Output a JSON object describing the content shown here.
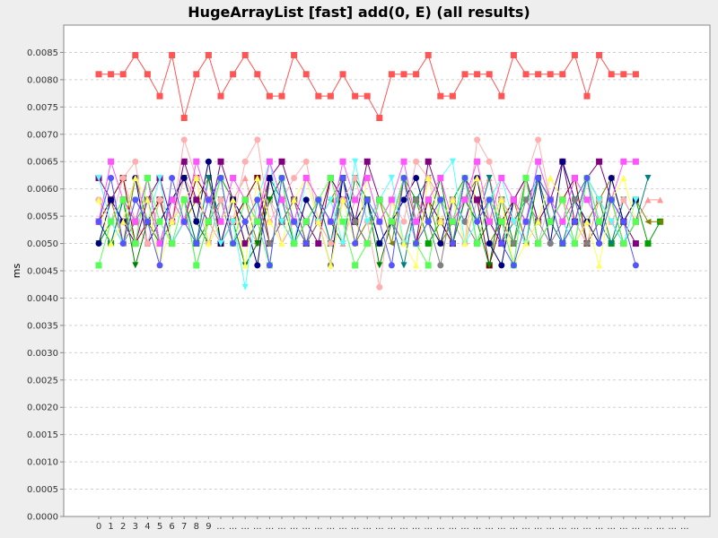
{
  "chart_data": {
    "type": "line",
    "title": "HugeArrayList [fast] add(0, E) (all results)",
    "xlabel": "",
    "ylabel": "ms",
    "ylim": [
      0,
      0.009
    ],
    "y_ticks": [
      "0.0000",
      "0.0005",
      "0.0010",
      "0.0015",
      "0.0020",
      "0.0025",
      "0.0030",
      "0.0035",
      "0.0040",
      "0.0045",
      "0.0050",
      "0.0055",
      "0.0060",
      "0.0065",
      "0.0070",
      "0.0075",
      "0.0080",
      "0.0085"
    ],
    "x_tick_labels": [
      "0",
      "1",
      "2",
      "3",
      "4",
      "5",
      "6",
      "7",
      "8",
      "9",
      "...",
      "...",
      "...",
      "...",
      "...",
      "...",
      "...",
      "...",
      "...",
      "...",
      "...",
      "...",
      "...",
      "...",
      "...",
      "...",
      "...",
      "...",
      "...",
      "...",
      "...",
      "...",
      "...",
      "...",
      "...",
      "...",
      "...",
      "...",
      "...",
      "...",
      "...",
      "...",
      "...",
      "...",
      "...",
      "...",
      "...",
      "...",
      "..."
    ],
    "grid": true,
    "legend": "none",
    "series": [
      {
        "color": "#ff5555",
        "marker": "square",
        "values": [
          0.0081,
          0.0081,
          0.0081,
          0.00845,
          0.0081,
          0.0077,
          0.00845,
          0.0073,
          0.0081,
          0.00845,
          0.0077,
          0.0081,
          0.00845,
          0.0081,
          0.0077,
          0.0077,
          0.00845,
          0.0081,
          0.0077,
          0.0077,
          0.0081,
          0.0077,
          0.0077,
          0.0073,
          0.0081,
          0.0081,
          0.0081,
          0.00845,
          0.0077,
          0.0077,
          0.0081,
          0.0081,
          0.0081,
          0.0077,
          0.00845,
          0.0081,
          0.0081,
          0.0081,
          0.0081,
          0.00845,
          0.0077,
          0.00845,
          0.0081,
          0.0081,
          0.0081
        ]
      },
      {
        "color": "#5555ff",
        "marker": "circle",
        "values": [
          0.0054,
          0.0062,
          0.005,
          0.0058,
          0.0054,
          0.0046,
          0.0062,
          0.0054,
          0.005,
          0.0058,
          0.0062,
          0.005,
          0.0054,
          0.0058,
          0.0046,
          0.0062,
          0.0054,
          0.005,
          0.0058,
          0.0054,
          0.0062,
          0.005,
          0.0058,
          0.0054,
          0.0046,
          0.0062,
          0.005,
          0.0054,
          0.0058,
          0.005,
          0.0062,
          0.0054,
          0.0058,
          0.005,
          0.0046,
          0.0054,
          0.0062,
          0.0058,
          0.005,
          0.0054,
          0.0062,
          0.005,
          0.0058,
          0.0054,
          0.0046
        ]
      },
      {
        "color": "#55ff55",
        "marker": "square",
        "values": [
          0.0046,
          0.0054,
          0.0058,
          0.005,
          0.0062,
          0.0054,
          0.005,
          0.0058,
          0.0046,
          0.0054,
          0.0062,
          0.005,
          0.0058,
          0.0054,
          0.0046,
          0.0062,
          0.005,
          0.0054,
          0.0058,
          0.0062,
          0.0054,
          0.0046,
          0.005,
          0.0058,
          0.0054,
          0.0062,
          0.005,
          0.0046,
          0.0058,
          0.0054,
          0.0062,
          0.005,
          0.0058,
          0.0054,
          0.0046,
          0.0062,
          0.005,
          0.0054,
          0.0058,
          0.005,
          0.0062,
          0.0054,
          0.0058,
          0.005,
          0.0054
        ]
      },
      {
        "color": "#ff55ff",
        "marker": "square",
        "values": [
          0.0054,
          0.0065,
          0.0058,
          0.0054,
          0.0062,
          0.005,
          0.0058,
          0.0054,
          0.0065,
          0.0058,
          0.0054,
          0.0062,
          0.0058,
          0.0054,
          0.0065,
          0.0058,
          0.0054,
          0.0062,
          0.0058,
          0.0054,
          0.0065,
          0.0058,
          0.0062,
          0.0054,
          0.0058,
          0.0065,
          0.0054,
          0.0058,
          0.0062,
          0.0054,
          0.0058,
          0.0065,
          0.0054,
          0.0062,
          0.0058,
          0.0054,
          0.0065,
          0.0058,
          0.0054,
          0.0062,
          0.0058,
          0.0054,
          0.0058,
          0.0065,
          0.0065
        ]
      },
      {
        "color": "#ffff55",
        "marker": "triangle-up",
        "values": [
          0.0058,
          0.005,
          0.0054,
          0.0062,
          0.0058,
          0.0046,
          0.0054,
          0.0058,
          0.0062,
          0.005,
          0.0054,
          0.0058,
          0.0046,
          0.0062,
          0.0054,
          0.005,
          0.0058,
          0.0062,
          0.0054,
          0.0046,
          0.0058,
          0.005,
          0.0062,
          0.0054,
          0.0058,
          0.005,
          0.0046,
          0.0062,
          0.0054,
          0.0058,
          0.005,
          0.0062,
          0.0054,
          0.0058,
          0.0046,
          0.005,
          0.0054,
          0.0062,
          0.0058,
          0.005,
          0.0054,
          0.0046,
          0.0058,
          0.0062,
          0.0054
        ]
      },
      {
        "color": "#55ffff",
        "marker": "triangle-down",
        "values": [
          0.0062,
          0.0054,
          0.005,
          0.0058,
          0.0054,
          0.0062,
          0.005,
          0.0054,
          0.0065,
          0.0058,
          0.005,
          0.0054,
          0.0042,
          0.0058,
          0.0065,
          0.0054,
          0.005,
          0.0062,
          0.0054,
          0.0058,
          0.005,
          0.0065,
          0.0054,
          0.0058,
          0.0062,
          0.005,
          0.0054,
          0.0058,
          0.0062,
          0.0065,
          0.005,
          0.0054,
          0.0058,
          0.0062,
          0.0054,
          0.005,
          0.0065,
          0.0058,
          0.0054,
          0.005,
          0.0062,
          0.0058,
          0.0054,
          0.005,
          0.0058
        ]
      },
      {
        "color": "#ffafaf",
        "marker": "circle",
        "values": [
          0.0058,
          0.0054,
          0.0062,
          0.0065,
          0.005,
          0.0058,
          0.0054,
          0.0069,
          0.0062,
          0.005,
          0.0058,
          0.0054,
          0.0065,
          0.0069,
          0.0054,
          0.0058,
          0.0062,
          0.0065,
          0.0054,
          0.005,
          0.0058,
          0.0062,
          0.0054,
          0.0042,
          0.0058,
          0.0054,
          0.0065,
          0.0062,
          0.0054,
          0.0058,
          0.005,
          0.0069,
          0.0065,
          0.0058,
          0.0054,
          0.0062,
          0.0069,
          0.0058,
          0.0054,
          0.005,
          0.0062,
          0.0058,
          0.0054,
          0.0058,
          0.0054
        ]
      },
      {
        "color": "#808080",
        "marker": "circle",
        "values": [
          0.0058,
          0.0054,
          0.005,
          0.0054,
          0.0058,
          0.005,
          0.0054,
          0.0058,
          0.0046,
          0.0054,
          0.0058,
          0.005,
          0.0054,
          0.0058,
          0.005,
          0.0054,
          0.0058,
          0.005,
          0.0054,
          0.0046,
          0.0058,
          0.0054,
          0.005,
          0.0058,
          0.0054,
          0.005,
          0.0058,
          0.0054,
          0.0046,
          0.0058,
          0.0054,
          0.005,
          0.0058,
          0.0054,
          0.005,
          0.0058,
          0.0054,
          0.005,
          0.0054,
          0.0058,
          0.005,
          0.0054,
          0.0058,
          0.005,
          0.0054
        ]
      },
      {
        "color": "#000080",
        "marker": "circle",
        "values": [
          0.005,
          0.0058,
          0.0054,
          0.0062,
          0.005,
          0.0054,
          0.0058,
          0.0062,
          0.0054,
          0.0065,
          0.005,
          0.0058,
          0.0054,
          0.0046,
          0.0062,
          0.0054,
          0.005,
          0.0058,
          0.0054,
          0.0046,
          0.0062,
          0.0054,
          0.0058,
          0.005,
          0.0054,
          0.0058,
          0.0062,
          0.0054,
          0.005,
          0.0058,
          0.0054,
          0.0062,
          0.005,
          0.0046,
          0.0058,
          0.0054,
          0.0062,
          0.005,
          0.0065,
          0.0058,
          0.0054,
          0.005,
          0.0062,
          0.0054,
          0.0058
        ]
      },
      {
        "color": "#800080",
        "marker": "square",
        "values": [
          0.0062,
          0.0058,
          0.0054,
          0.005,
          0.0058,
          0.0062,
          0.0054,
          0.0065,
          0.0058,
          0.0054,
          0.0065,
          0.0058,
          0.005,
          0.0054,
          0.0062,
          0.0065,
          0.0058,
          0.0054,
          0.005,
          0.0062,
          0.0058,
          0.0054,
          0.0065,
          0.0058,
          0.0054,
          0.0062,
          0.005,
          0.0065,
          0.0058,
          0.0054,
          0.0062,
          0.0058,
          0.0054,
          0.005,
          0.0058,
          0.0062,
          0.0054,
          0.0058,
          0.0065,
          0.0054,
          0.0062,
          0.0065,
          0.0058,
          0.0054,
          0.005
        ]
      },
      {
        "color": "#008000",
        "marker": "triangle-down",
        "values": [
          0.005,
          0.0054,
          0.0058,
          0.0046,
          0.0054,
          0.005,
          0.0058,
          0.0062,
          0.0054,
          0.005,
          0.0058,
          0.0054,
          0.0046,
          0.005,
          0.0058,
          0.0062,
          0.0054,
          0.005,
          0.0058,
          0.0054,
          0.005,
          0.0062,
          0.0058,
          0.0046,
          0.0054,
          0.005,
          0.0058,
          0.0054,
          0.0062,
          0.005,
          0.0058,
          0.0054,
          0.0046,
          0.0058,
          0.0054,
          0.005,
          0.0062,
          0.0058,
          0.0054,
          0.005,
          0.0062,
          0.0058,
          0.0054,
          0.005,
          0.0054
        ]
      },
      {
        "color": "#800000",
        "marker": "square",
        "values": [
          0.0054,
          0.0058,
          0.0062,
          0.005,
          0.0054,
          0.0058,
          0.005,
          0.0054,
          0.0062,
          0.0058,
          0.005,
          0.0054,
          0.0058,
          0.0062,
          0.005,
          0.0054,
          0.0058,
          0.005,
          0.0054,
          0.0062,
          0.0058,
          0.0054,
          0.005,
          0.0058,
          0.0054,
          0.0062,
          0.005,
          0.0058,
          0.0054,
          0.005,
          0.0062,
          0.0058,
          0.0046,
          0.0054,
          0.0058,
          0.0062,
          0.005,
          0.0054,
          0.0058,
          0.0062,
          0.005,
          0.0054,
          0.0058,
          0.005,
          0.0054
        ]
      },
      {
        "color": "#008080",
        "marker": "triangle-down",
        "values": [
          0.0054,
          0.005,
          0.0058,
          0.0054,
          0.0062,
          0.005,
          0.0054,
          0.0058,
          0.005,
          0.0062,
          0.0054,
          0.0058,
          0.005,
          0.0054,
          0.0062,
          0.0058,
          0.005,
          0.0054,
          0.0058,
          0.005,
          0.0062,
          0.0054,
          0.0058,
          0.005,
          0.0054,
          0.0046,
          0.0058,
          0.0062,
          0.0054,
          0.005,
          0.0058,
          0.0054,
          0.0062,
          0.005,
          0.0054,
          0.0058,
          0.0062,
          0.0054,
          0.005,
          0.0058,
          0.0062,
          0.0054,
          0.005,
          0.0058,
          0.0054,
          0.0062
        ]
      },
      {
        "color": "#808000",
        "marker": "triangle-left",
        "values": [
          0.0054,
          0.0058,
          0.005,
          0.0062,
          0.0054,
          0.0058,
          0.005,
          0.0054,
          0.0058,
          0.0062,
          0.005,
          0.0054,
          0.0058,
          0.005,
          0.0062,
          0.0054,
          0.0058,
          0.005,
          0.0054,
          0.0058,
          0.0062,
          0.005,
          0.0054,
          0.0058,
          0.005,
          0.0062,
          0.0054,
          0.0058,
          0.005,
          0.0054,
          0.0058,
          0.0062,
          0.005,
          0.0054,
          0.0058,
          0.005,
          0.0062,
          0.0054,
          0.0058,
          0.005,
          0.0054,
          0.0058,
          0.0062,
          0.0054,
          0.0058,
          0.0054,
          0.0054
        ]
      },
      {
        "color": "#c0c0c0",
        "marker": "circle",
        "values": [
          0.0058,
          0.0054,
          0.005,
          0.0058,
          0.0054,
          0.0058,
          0.005,
          0.0054,
          0.0058,
          0.005,
          0.0054,
          0.0058,
          0.0054,
          0.005,
          0.0058,
          0.0054,
          0.005,
          0.0058,
          0.0054,
          0.005,
          0.0058,
          0.0054,
          0.0058,
          0.005,
          0.0054,
          0.0058,
          0.005,
          0.0054,
          0.0058,
          0.0054,
          0.005,
          0.0058,
          0.0054,
          0.005,
          0.0058,
          0.0054,
          0.005,
          0.0058,
          0.0054,
          0.0058,
          0.005,
          0.0054,
          0.0058,
          0.005,
          0.0054
        ]
      },
      {
        "color": "#ff9999",
        "marker": "triangle-up",
        "values": [
          0.0054,
          0.0058,
          0.0062,
          0.0054,
          0.005,
          0.0058,
          0.0054,
          0.0062,
          0.0058,
          0.0054,
          0.005,
          0.0058,
          0.0062,
          0.0054,
          0.0058,
          0.005,
          0.0054,
          0.0062,
          0.0058,
          0.0054,
          0.005,
          0.0058,
          0.0062,
          0.0054,
          0.0058,
          0.005,
          0.0054,
          0.0062,
          0.0058,
          0.0054,
          0.005,
          0.0058,
          0.0062,
          0.0054,
          0.0058,
          0.005,
          0.0054,
          0.0062,
          0.0058,
          0.0054,
          0.005,
          0.0058,
          0.0054,
          0.0058,
          0.0054,
          0.0058,
          0.0058
        ]
      },
      {
        "color": "#00a000",
        "marker": "square",
        "values": [
          0.0054,
          0.005,
          0.0058,
          0.0054,
          0.0062,
          0.005,
          0.0054,
          0.0058,
          0.005,
          0.0054,
          0.0062,
          0.0058,
          0.005,
          0.0054,
          0.0058,
          0.0062,
          0.005,
          0.0054,
          0.0058,
          0.005,
          0.0062,
          0.0054,
          0.0058,
          0.005,
          0.0054,
          0.0062,
          0.0058,
          0.005,
          0.0054,
          0.0058,
          0.0062,
          0.005,
          0.0054,
          0.0058,
          0.005,
          0.0062,
          0.0054,
          0.0058,
          0.005,
          0.0054,
          0.0062,
          0.0058,
          0.005,
          0.0054,
          0.0058,
          0.005,
          0.0054
        ]
      }
    ]
  }
}
